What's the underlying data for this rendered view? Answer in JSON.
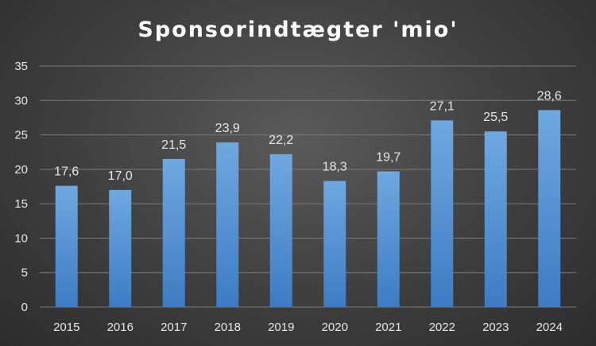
{
  "chart_data": {
    "type": "bar",
    "title": "Sponsorindtægter 'mio'",
    "xlabel": "",
    "ylabel": "",
    "categories": [
      "2015",
      "2016",
      "2017",
      "2018",
      "2019",
      "2020",
      "2021",
      "2022",
      "2023",
      "2024"
    ],
    "values": [
      17.6,
      17.0,
      21.5,
      23.9,
      22.2,
      18.3,
      19.7,
      27.1,
      25.5,
      28.6
    ],
    "data_labels": [
      "17,6",
      "17,0",
      "21,5",
      "23,9",
      "22,2",
      "18,3",
      "19,7",
      "27,1",
      "25,5",
      "28,6"
    ],
    "ylim": [
      0,
      35
    ],
    "yticks": [
      0,
      5,
      10,
      15,
      20,
      25,
      30,
      35
    ],
    "grid": true,
    "legend": "none",
    "colors": {
      "bar_top": "#6fa8e0",
      "bar_bottom": "#3d7cc4"
    }
  }
}
